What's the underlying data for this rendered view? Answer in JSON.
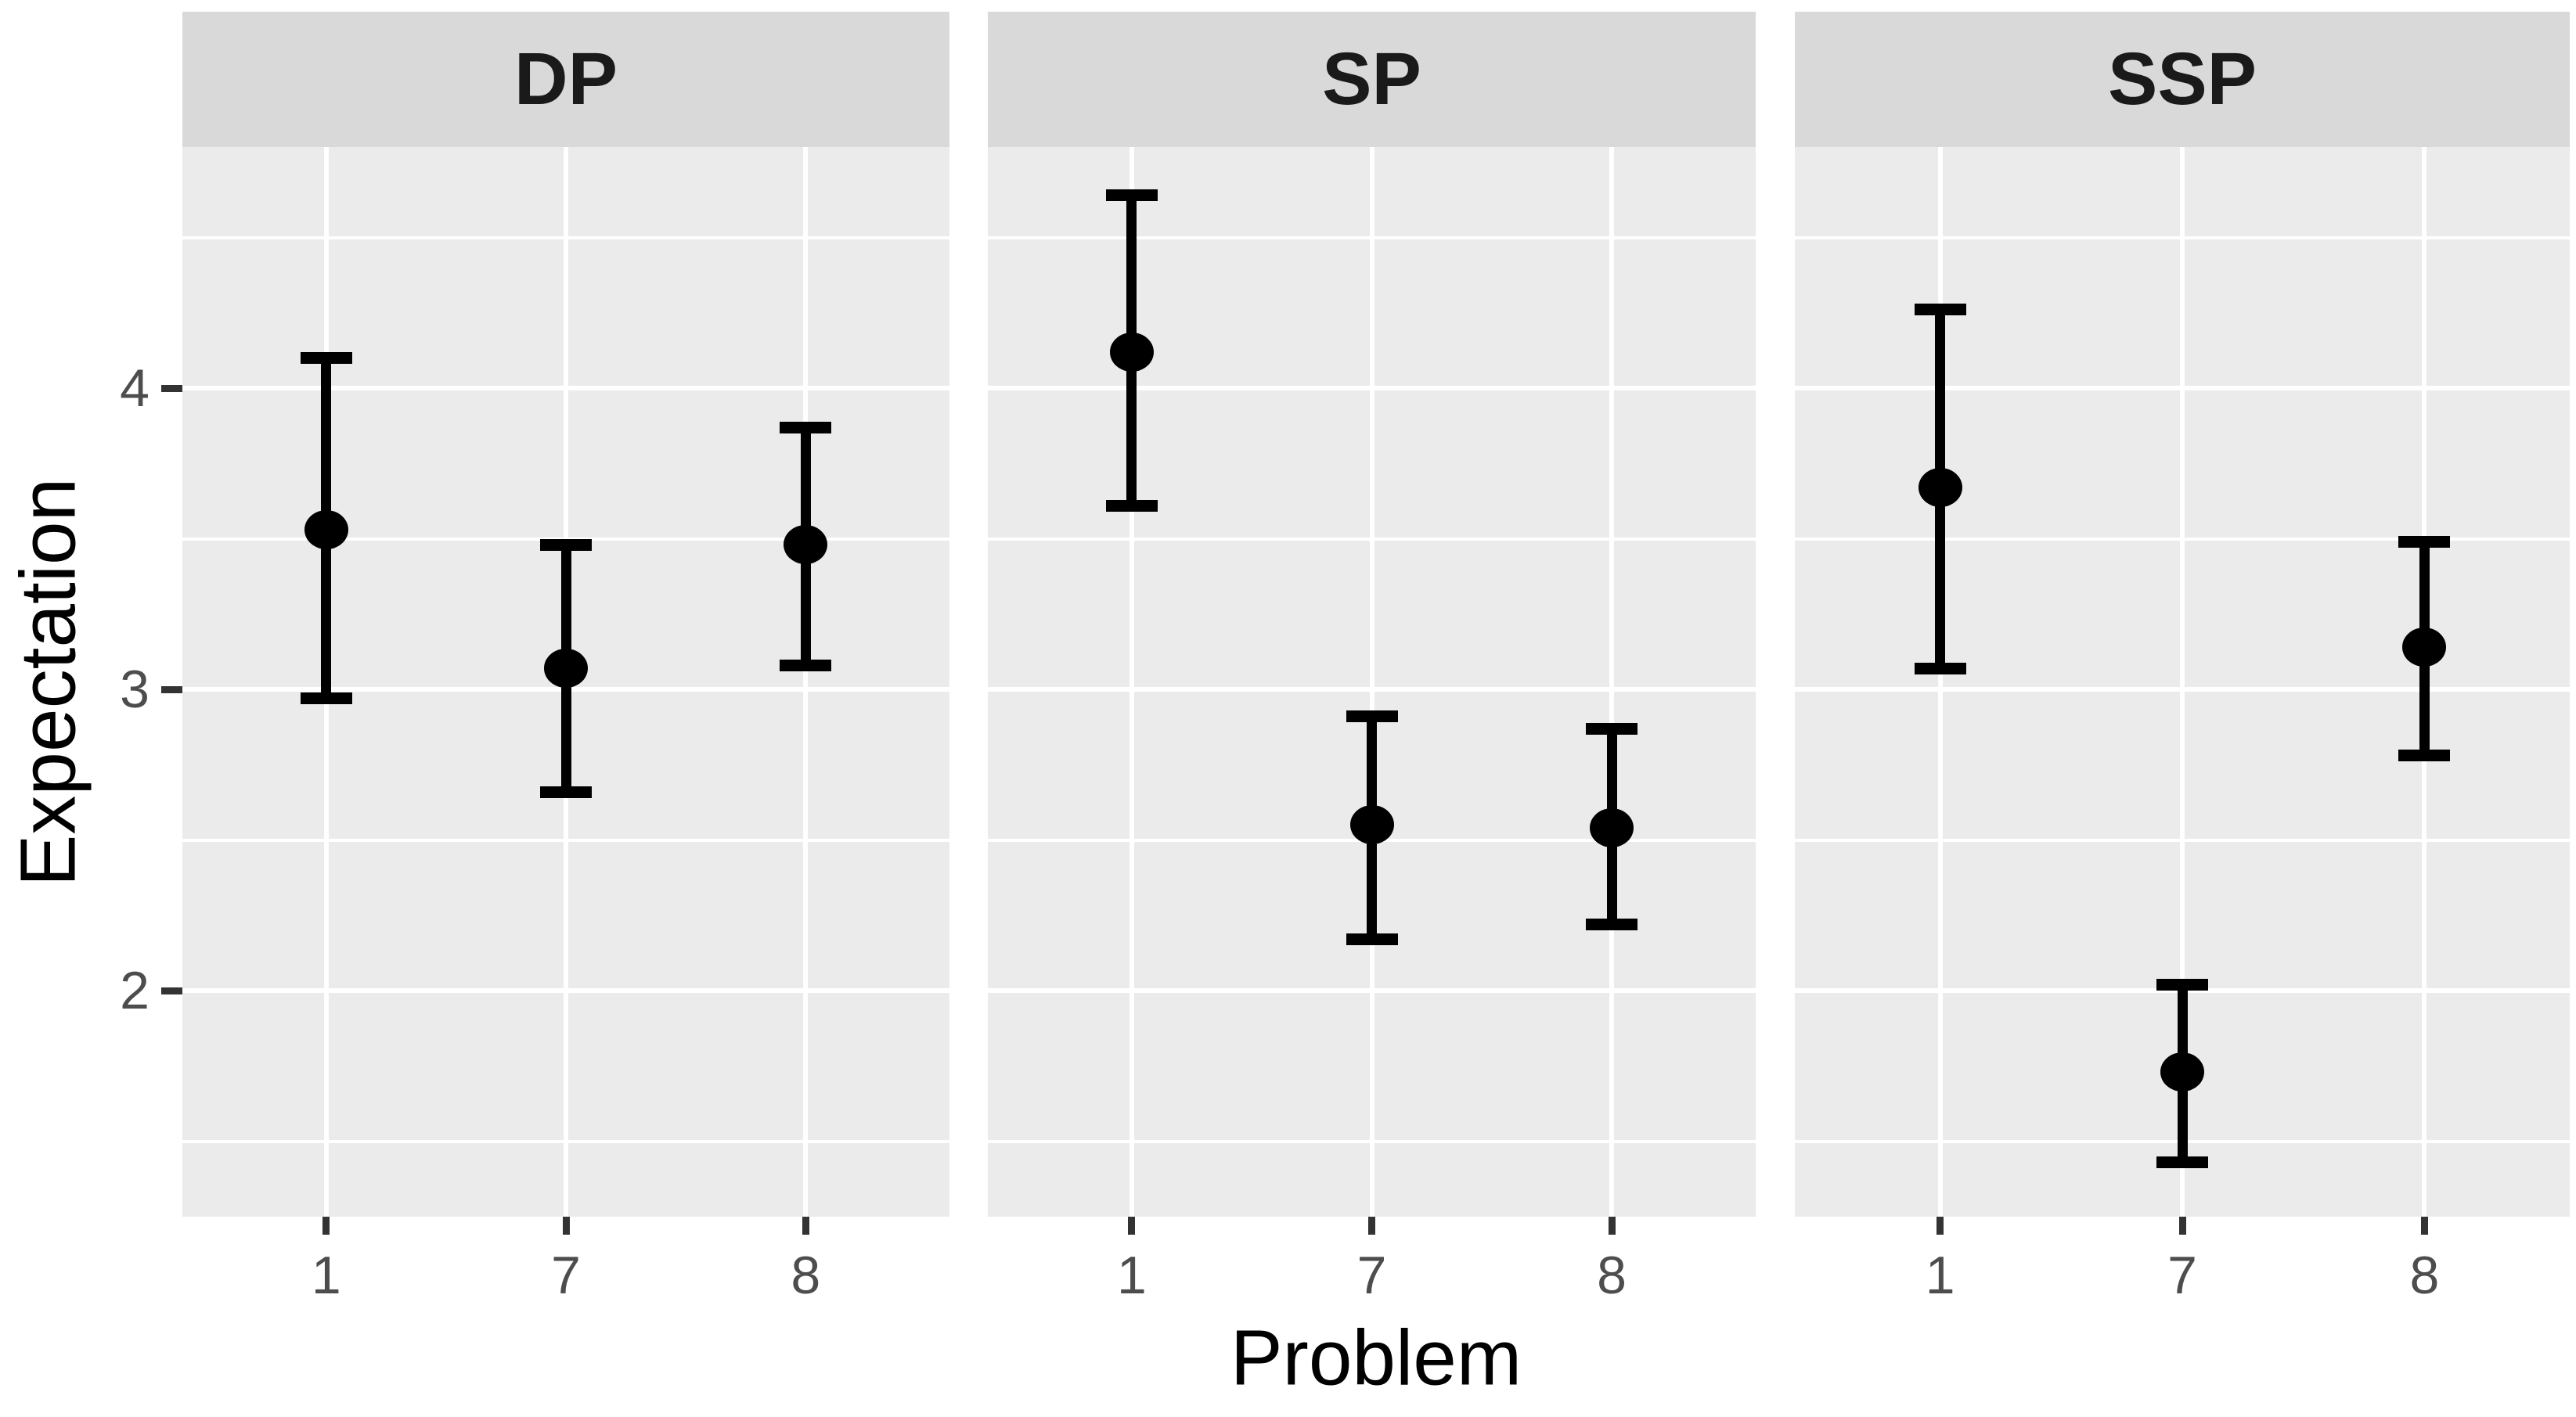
{
  "chart_data": {
    "type": "scatter",
    "subtype": "pointrange-errorbar-faceted",
    "title": "",
    "xlabel": "Problem",
    "ylabel": "Expectation",
    "x_categories": [
      "1",
      "7",
      "8"
    ],
    "yticks": [
      4,
      3,
      2
    ],
    "ytick_labels": [
      "4",
      "3",
      "2"
    ],
    "minor_gridlines": [
      4.5,
      3.5,
      2.5,
      1.5
    ],
    "major_gridlines": [
      4,
      3,
      2
    ],
    "ylim": [
      1.25,
      4.8
    ],
    "grid": "white major+minor horizontal, white major vertical, on grey panel",
    "legend": "none",
    "facets": [
      {
        "label": "DP",
        "series": [
          {
            "x": "1",
            "mean": 3.53,
            "lower": 2.97,
            "upper": 4.1
          },
          {
            "x": "7",
            "mean": 3.07,
            "lower": 2.66,
            "upper": 3.48
          },
          {
            "x": "8",
            "mean": 3.48,
            "lower": 3.08,
            "upper": 3.87
          }
        ]
      },
      {
        "label": "SP",
        "series": [
          {
            "x": "1",
            "mean": 4.12,
            "lower": 3.61,
            "upper": 4.64
          },
          {
            "x": "7",
            "mean": 2.55,
            "lower": 2.17,
            "upper": 2.91
          },
          {
            "x": "8",
            "mean": 2.54,
            "lower": 2.22,
            "upper": 2.87
          }
        ]
      },
      {
        "label": "SSP",
        "series": [
          {
            "x": "1",
            "mean": 3.67,
            "lower": 3.07,
            "upper": 4.26
          },
          {
            "x": "7",
            "mean": 1.73,
            "lower": 1.43,
            "upper": 2.02
          },
          {
            "x": "8",
            "mean": 3.14,
            "lower": 2.78,
            "upper": 3.49
          }
        ]
      }
    ]
  },
  "style": {
    "panel_background": "#EBEBEB",
    "strip_background": "#D9D9D9",
    "strip_text_color": "#1A1A1A",
    "gridline_color": "#FFFFFF",
    "point_color": "#000000",
    "errorbar_color": "#000000",
    "axis_title_color": "#000000",
    "tick_label_color": "#4D4D4D",
    "tick_mark_color": "#333333",
    "background": "#FFFFFF"
  }
}
